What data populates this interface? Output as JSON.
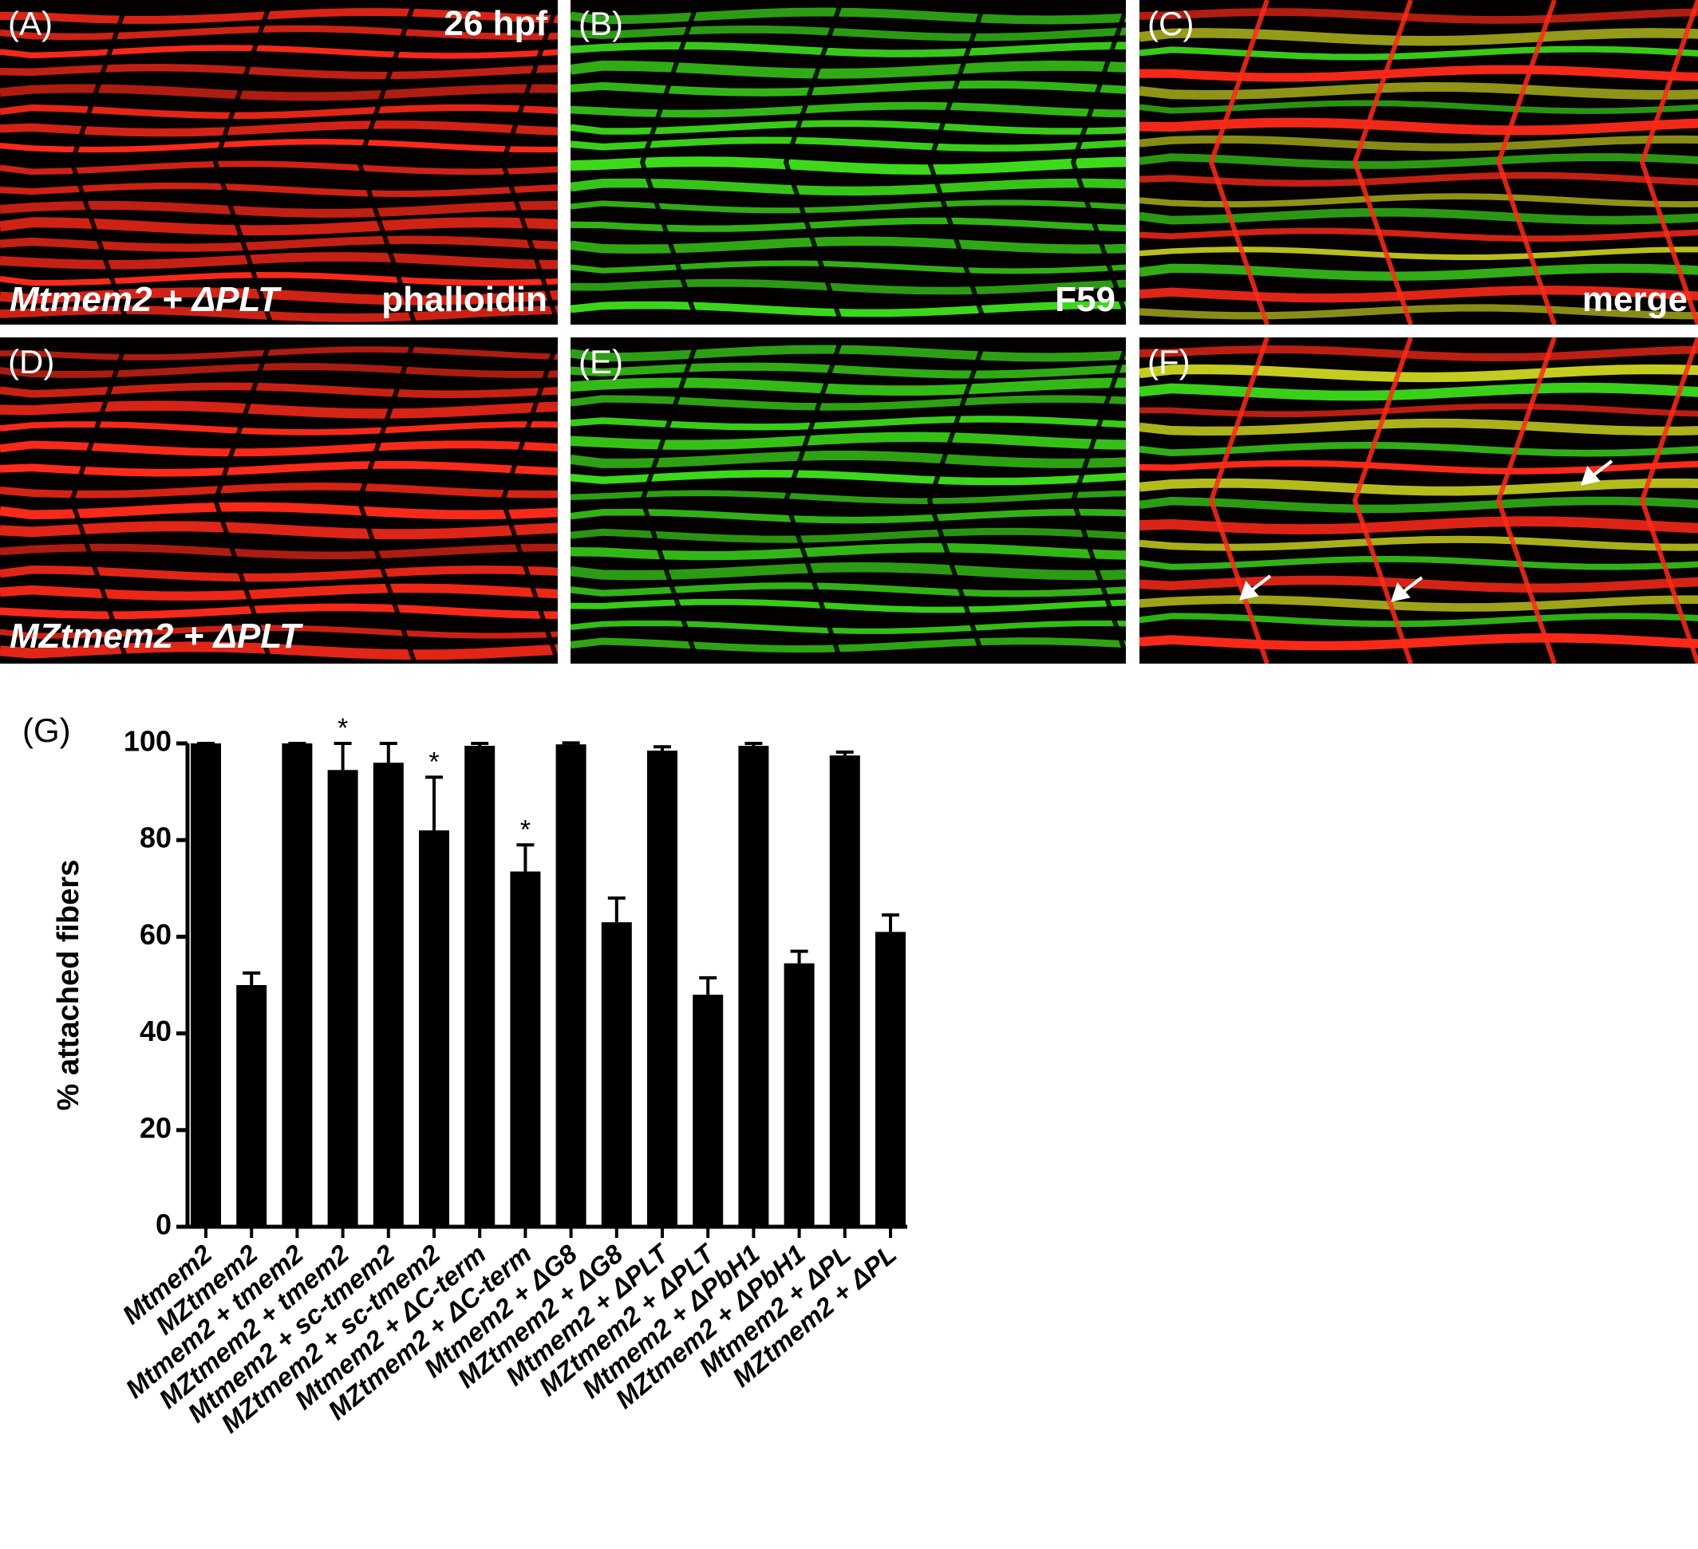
{
  "panels": [
    {
      "label": "(A)",
      "note_top": "26 hpf",
      "note_bottom_left": "Mtmem2 + ΔPLT",
      "note_bottom_right": "phalloidin",
      "colors": [
        "#ff2a1a"
      ]
    },
    {
      "label": "(B)",
      "note_bottom_right": "F59",
      "colors": [
        "#3ee01c"
      ]
    },
    {
      "label": "(C)",
      "note_bottom_right": "merge",
      "colors": [
        "#ff2a1a",
        "#3ee01c"
      ]
    },
    {
      "label": "(D)",
      "note_bottom_left": "MZtmem2 + ΔPLT",
      "colors": [
        "#ff2a1a"
      ]
    },
    {
      "label": "(E)",
      "colors": [
        "#3ee01c"
      ]
    },
    {
      "label": "(F)",
      "colors": [
        "#ff2a1a",
        "#3ee01c"
      ]
    }
  ],
  "chart_data": {
    "type": "bar",
    "panel_label": "(G)",
    "y_label": "% attached fibers",
    "categories": [
      "Mtmem2",
      "MZtmem2",
      "Mtmem2 + tmem2",
      "MZtmem2 + tmem2",
      "Mtmem2 + sc-tmem2",
      "MZtmem2 + sc-tmem2",
      "Mtmem2 + ΔC-term",
      "MZtmem2 + ΔC-term",
      "Mtmem2 + ΔG8",
      "MZtmem2 + ΔG8",
      "Mtmem2 + ΔPLT",
      "MZtmem2 + ΔPLT",
      "Mtmem2 + ΔPbH1",
      "MZtmem2 + ΔPbH1",
      "Mtmem2 + ΔPL",
      "MZtmem2 + ΔPL"
    ],
    "values": [
      100,
      50,
      100,
      94.5,
      96,
      82,
      99.5,
      73.5,
      99.8,
      63,
      98.5,
      48,
      99.5,
      54.5,
      97.5,
      61
    ],
    "errors": [
      0,
      2.5,
      0,
      5.5,
      4,
      11,
      0.5,
      5.5,
      0.3,
      5,
      0.8,
      3.5,
      0.5,
      2.5,
      0.7,
      3.5
    ],
    "color": "#000000",
    "ylim": [
      0,
      100
    ],
    "yticks": [
      0,
      20,
      40,
      60,
      80,
      100
    ],
    "annotations": [
      {
        "category": "MZtmem2 + tmem2",
        "text": "*"
      },
      {
        "category": "MZtmem2 + sc-tmem2",
        "text": "*"
      },
      {
        "category": "MZtmem2 + ΔC-term",
        "text": "*"
      }
    ]
  }
}
